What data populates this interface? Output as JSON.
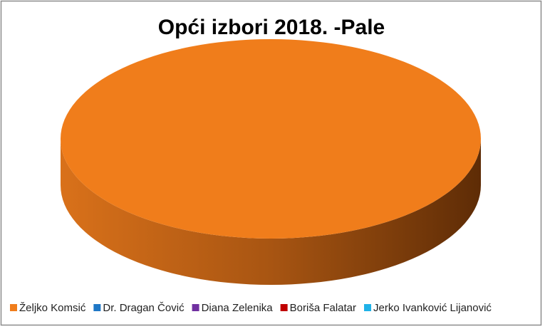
{
  "chart_data": {
    "type": "pie",
    "title": "Opći izbori 2018. -Pale",
    "categories": [
      "Željko Komsić",
      "Dr. Dragan Čović",
      "Diana Zelenika",
      "Boriša Falatar",
      "Jerko Ivanković Lijanović"
    ],
    "values": [
      100,
      0,
      0,
      0,
      0
    ],
    "colors": [
      "#f07d1b",
      "#1f77c6",
      "#7030a0",
      "#c00000",
      "#1fb2e8"
    ],
    "legend": "bottom"
  }
}
